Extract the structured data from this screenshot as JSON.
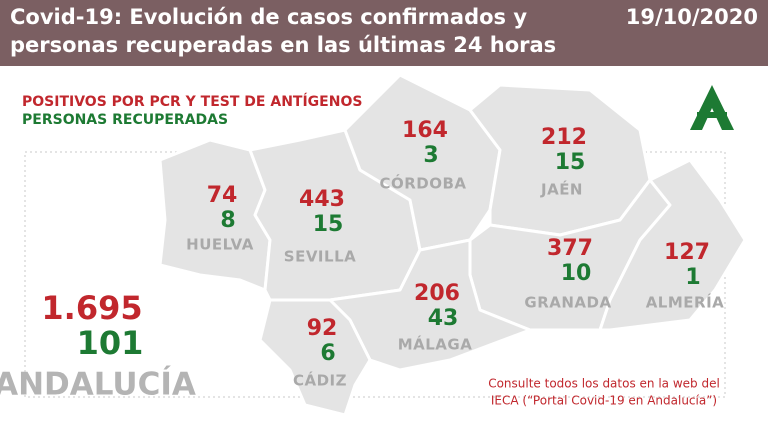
{
  "header": {
    "title_lines": [
      "Covid-19: Evolución de casos confirmados y",
      "personas recuperadas en las últimas 24 horas"
    ],
    "date": "19/10/2020"
  },
  "legend": {
    "positives": "POSITIVOS POR PCR Y TEST DE ANTÍGENOS",
    "recovered": "PERSONAS RECUPERADAS"
  },
  "provinces": [
    {
      "name": "HUELVA",
      "positives": "74",
      "recovered": "8"
    },
    {
      "name": "SEVILLA",
      "positives": "443",
      "recovered": "15"
    },
    {
      "name": "CÓRDOBA",
      "positives": "164",
      "recovered": "3"
    },
    {
      "name": "JAÉN",
      "positives": "212",
      "recovered": "15"
    },
    {
      "name": "GRANADA",
      "positives": "377",
      "recovered": "10"
    },
    {
      "name": "ALMERÍA",
      "positives": "127",
      "recovered": "1"
    },
    {
      "name": "MÁLAGA",
      "positives": "206",
      "recovered": "43"
    },
    {
      "name": "CÁDIZ",
      "positives": "92",
      "recovered": "6"
    }
  ],
  "total": {
    "name": "ANDALUCÍA",
    "positives": "1.695",
    "recovered": "101"
  },
  "note": [
    "Consulte todos los datos en la web del",
    "IECA (“Portal Covid-19 en Andalucía”)"
  ]
}
